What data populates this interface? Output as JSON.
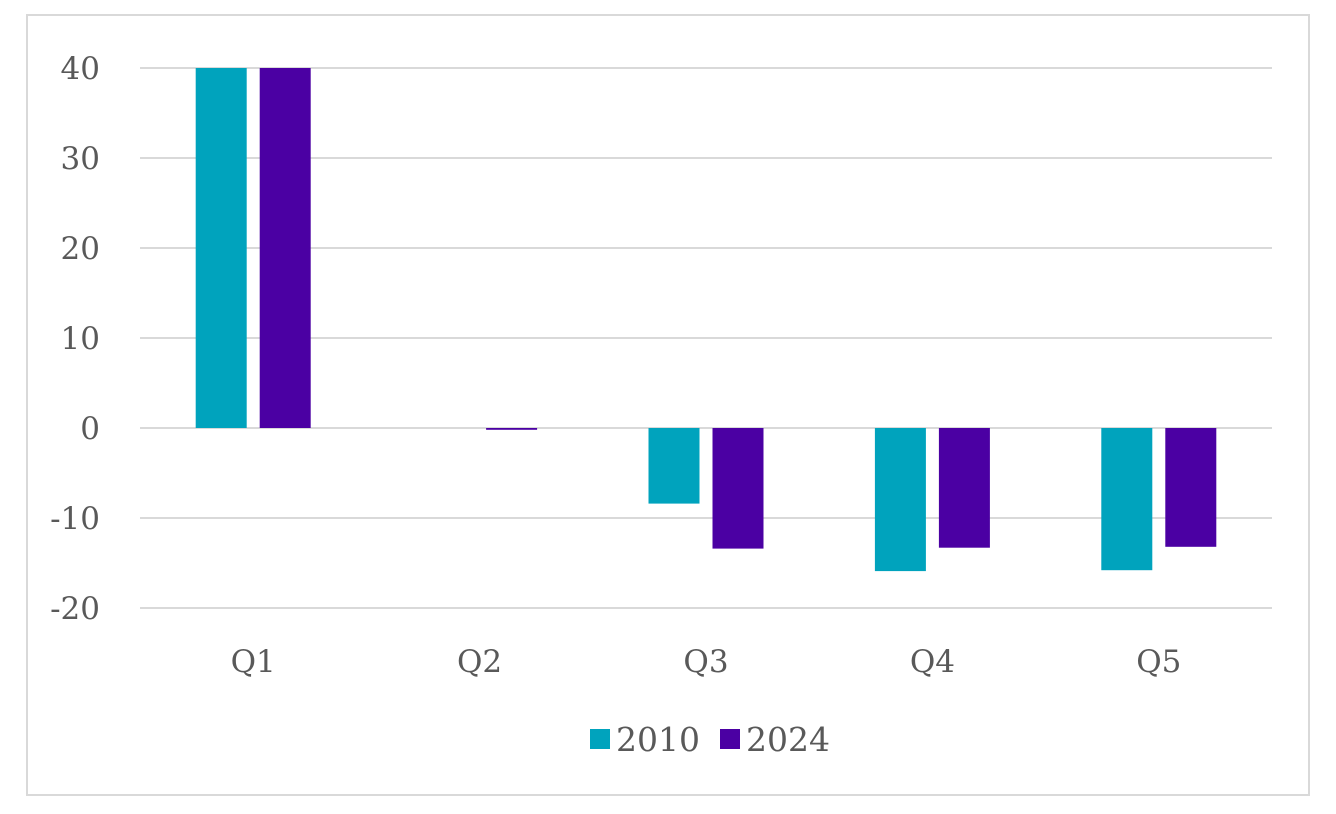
{
  "chart_data": {
    "type": "bar",
    "title": "",
    "xlabel": "",
    "ylabel": "",
    "categories": [
      "Q1",
      "Q2",
      "Q3",
      "Q4",
      "Q5"
    ],
    "series": [
      {
        "name": "2010",
        "color": "#00a3bd",
        "values": [
          40,
          0,
          -8.4,
          -15.9,
          -15.8
        ]
      },
      {
        "name": "2024",
        "color": "#4b00a3",
        "values": [
          40,
          -0.2,
          -13.4,
          -13.3,
          -13.2
        ]
      }
    ],
    "ylim": [
      -20,
      40
    ],
    "yticks": [
      40,
      30,
      20,
      10,
      0,
      -10,
      -20
    ],
    "ytick_labels": [
      "40",
      "30",
      "20",
      "10",
      "0",
      "-10",
      "-20"
    ],
    "grid": true,
    "legend": {
      "position": "bottom",
      "entries": [
        "2010",
        "2024"
      ]
    },
    "colors": {
      "gridline": "#d9d9d9",
      "text": "#595959",
      "border": "#d9d9d9"
    }
  }
}
